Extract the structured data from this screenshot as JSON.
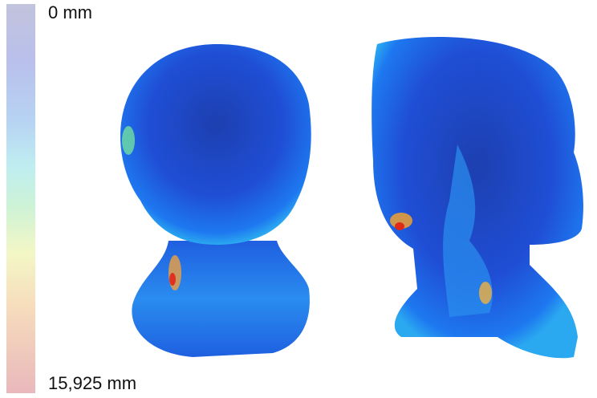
{
  "colorbar": {
    "min_label": "0 mm",
    "max_label": "15,925 mm"
  }
}
